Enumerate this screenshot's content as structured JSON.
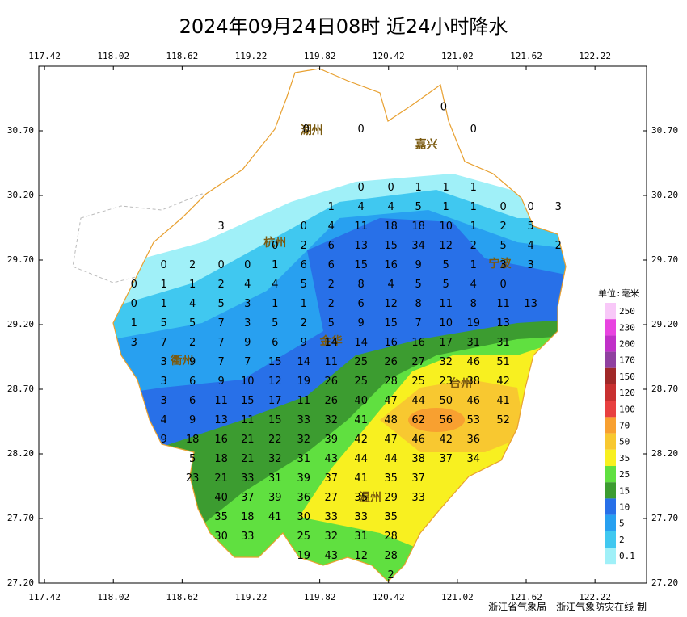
{
  "map": {
    "title": "2024年09月24日08时  近24小时降水",
    "footer": "浙江省气象局　浙江气象防灾在线 制",
    "xlim": [
      117.37,
      122.67
    ],
    "ylim": [
      27.2,
      31.2
    ],
    "xticks": [
      117.42,
      118.02,
      118.62,
      119.22,
      119.82,
      120.42,
      121.02,
      121.62,
      122.22
    ],
    "yticks": [
      {
        "value": 30.7,
        "label": "30.70"
      },
      {
        "value": 30.2,
        "label": "30.20"
      },
      {
        "value": 29.7,
        "label": "29.70"
      },
      {
        "value": 29.2,
        "label": "29.20"
      },
      {
        "value": 28.7,
        "label": "28.70"
      },
      {
        "value": 28.2,
        "label": "28.20"
      },
      {
        "value": 27.7,
        "label": "27.70"
      },
      {
        "value": 27.2,
        "label": "27.20"
      }
    ],
    "cities": [
      {
        "name": "湖州",
        "lon": 119.75,
        "lat": 30.7
      },
      {
        "name": "嘉兴",
        "lon": 120.75,
        "lat": 30.59
      },
      {
        "name": "杭州",
        "lon": 119.43,
        "lat": 29.83
      },
      {
        "name": "宁波",
        "lon": 121.39,
        "lat": 29.67
      },
      {
        "name": "衢州",
        "lon": 118.62,
        "lat": 28.92
      },
      {
        "name": "金华",
        "lon": 119.92,
        "lat": 29.07
      },
      {
        "name": "台州",
        "lon": 121.05,
        "lat": 28.74
      },
      {
        "name": "温州",
        "lon": 120.26,
        "lat": 27.86
      }
    ],
    "legend": {
      "title": "单位:毫米",
      "levels": [
        250,
        230,
        200,
        170,
        150,
        120,
        100,
        70,
        50,
        35,
        25,
        15,
        10,
        5,
        2,
        0.1
      ],
      "colors": [
        "#f8c8f8",
        "#e844e0",
        "#c030c8",
        "#9040a0",
        "#a02828",
        "#c83030",
        "#e84040",
        "#f8a030",
        "#f8c830",
        "#f8f020",
        "#60e040",
        "#3c9c30",
        "#2870e8",
        "#28a0f0",
        "#40c8f0",
        "#a0f0f8"
      ]
    },
    "stations": {
      "rows": [
        {
          "lat": 30.88,
          "lon": [
            120.9
          ],
          "values": [
            0
          ]
        },
        {
          "lat": 30.71,
          "lon": [
            119.7,
            120.18,
            121.16
          ],
          "values": [
            0,
            0,
            0
          ]
        },
        {
          "lat": 30.26,
          "lon": [
            120.18,
            120.44,
            120.68,
            120.92,
            121.16
          ],
          "values": [
            0,
            0,
            1,
            1,
            1
          ]
        },
        {
          "lat": 30.11,
          "lon": [
            119.92,
            120.18,
            120.44,
            120.68,
            120.92,
            121.16,
            121.42,
            121.66,
            121.9
          ],
          "values": [
            1,
            4,
            4,
            5,
            1,
            1,
            0,
            0,
            3
          ]
        },
        {
          "lat": 29.96,
          "lon": [
            118.96,
            119.68,
            119.92,
            120.18,
            120.44,
            120.68,
            120.92,
            121.16,
            121.42,
            121.66
          ],
          "values": [
            3,
            0,
            4,
            11,
            18,
            18,
            10,
            1,
            2,
            5
          ]
        },
        {
          "lat": 29.81,
          "lon": [
            119.43,
            119.68,
            119.92,
            120.18,
            120.44,
            120.68,
            120.92,
            121.16,
            121.42,
            121.66,
            121.9
          ],
          "values": [
            0,
            2,
            6,
            13,
            15,
            34,
            12,
            2,
            5,
            4,
            2
          ]
        },
        {
          "lat": 29.66,
          "lon": [
            118.46,
            118.71,
            118.96,
            119.19,
            119.43,
            119.68,
            119.92,
            120.18,
            120.44,
            120.68,
            120.92,
            121.16,
            121.42,
            121.66
          ],
          "values": [
            0,
            2,
            0,
            0,
            1,
            6,
            6,
            15,
            16,
            9,
            5,
            1,
            3,
            3
          ]
        },
        {
          "lat": 29.51,
          "lon": [
            118.2,
            118.46,
            118.71,
            118.96,
            119.19,
            119.43,
            119.68,
            119.92,
            120.18,
            120.44,
            120.68,
            120.92,
            121.16,
            121.42
          ],
          "values": [
            0,
            1,
            1,
            2,
            4,
            4,
            5,
            2,
            8,
            4,
            5,
            5,
            4,
            0
          ]
        },
        {
          "lat": 29.36,
          "lon": [
            118.2,
            118.46,
            118.71,
            118.96,
            119.19,
            119.43,
            119.68,
            119.92,
            120.18,
            120.44,
            120.68,
            120.92,
            121.16,
            121.42,
            121.66
          ],
          "values": [
            0,
            1,
            4,
            5,
            3,
            1,
            1,
            2,
            6,
            12,
            8,
            11,
            8,
            11,
            13
          ]
        },
        {
          "lat": 29.21,
          "lon": [
            118.2,
            118.46,
            118.71,
            118.96,
            119.19,
            119.43,
            119.68,
            119.92,
            120.18,
            120.44,
            120.68,
            120.92,
            121.16,
            121.42
          ],
          "values": [
            1,
            5,
            5,
            7,
            3,
            5,
            2,
            5,
            9,
            15,
            7,
            10,
            19,
            13
          ]
        },
        {
          "lat": 29.06,
          "lon": [
            118.2,
            118.46,
            118.71,
            118.96,
            119.19,
            119.43,
            119.68,
            119.92,
            120.18,
            120.44,
            120.68,
            120.92,
            121.16,
            121.42
          ],
          "values": [
            3,
            7,
            2,
            7,
            9,
            6,
            9,
            14,
            14,
            16,
            16,
            17,
            31,
            31
          ]
        },
        {
          "lat": 28.91,
          "lon": [
            118.46,
            118.71,
            118.96,
            119.19,
            119.43,
            119.68,
            119.92,
            120.18,
            120.44,
            120.68,
            120.92,
            121.16,
            121.42
          ],
          "values": [
            3,
            9,
            7,
            7,
            15,
            14,
            11,
            25,
            26,
            27,
            32,
            46,
            51
          ]
        },
        {
          "lat": 28.76,
          "lon": [
            118.46,
            118.71,
            118.96,
            119.19,
            119.43,
            119.68,
            119.92,
            120.18,
            120.44,
            120.68,
            120.92,
            121.16,
            121.42
          ],
          "values": [
            3,
            6,
            9,
            10,
            12,
            19,
            26,
            25,
            28,
            25,
            23,
            38,
            42
          ]
        },
        {
          "lat": 28.61,
          "lon": [
            118.46,
            118.71,
            118.96,
            119.19,
            119.43,
            119.68,
            119.92,
            120.18,
            120.44,
            120.68,
            120.92,
            121.16,
            121.42
          ],
          "values": [
            3,
            6,
            11,
            15,
            17,
            11,
            26,
            40,
            47,
            44,
            50,
            46,
            41
          ]
        },
        {
          "lat": 28.46,
          "lon": [
            118.46,
            118.71,
            118.96,
            119.19,
            119.43,
            119.68,
            119.92,
            120.18,
            120.44,
            120.68,
            120.92,
            121.16,
            121.42
          ],
          "values": [
            4,
            9,
            13,
            11,
            15,
            33,
            32,
            41,
            48,
            62,
            56,
            53,
            52
          ]
        },
        {
          "lat": 28.31,
          "lon": [
            118.46,
            118.71,
            118.96,
            119.19,
            119.43,
            119.68,
            119.92,
            120.18,
            120.44,
            120.68,
            120.92,
            121.16
          ],
          "values": [
            9,
            18,
            16,
            21,
            22,
            32,
            39,
            42,
            47,
            46,
            42,
            36
          ]
        },
        {
          "lat": 28.16,
          "lon": [
            118.71,
            118.96,
            119.19,
            119.43,
            119.68,
            119.92,
            120.18,
            120.44,
            120.68,
            120.92,
            121.16
          ],
          "values": [
            5,
            18,
            21,
            32,
            31,
            43,
            44,
            44,
            38,
            37,
            34
          ]
        },
        {
          "lat": 28.01,
          "lon": [
            118.71,
            118.96,
            119.19,
            119.43,
            119.68,
            119.92,
            120.18,
            120.44,
            120.68
          ],
          "values": [
            23,
            21,
            33,
            31,
            39,
            37,
            41,
            35,
            37
          ]
        },
        {
          "lat": 27.86,
          "lon": [
            118.96,
            119.19,
            119.43,
            119.68,
            119.92,
            120.18,
            120.44,
            120.68
          ],
          "values": [
            40,
            37,
            39,
            36,
            27,
            35,
            29,
            33
          ]
        },
        {
          "lat": 27.71,
          "lon": [
            118.96,
            119.19,
            119.43,
            119.68,
            119.92,
            120.18,
            120.44
          ],
          "values": [
            35,
            18,
            41,
            30,
            33,
            33,
            35
          ]
        },
        {
          "lat": 27.56,
          "lon": [
            118.96,
            119.19,
            119.68,
            119.92,
            120.18,
            120.44
          ],
          "values": [
            30,
            33,
            25,
            32,
            31,
            28
          ]
        },
        {
          "lat": 27.41,
          "lon": [
            119.68,
            119.92,
            120.18,
            120.44
          ],
          "values": [
            19,
            43,
            12,
            28
          ]
        },
        {
          "lat": 27.26,
          "lon": [
            120.44
          ],
          "values": [
            2
          ]
        }
      ]
    }
  }
}
